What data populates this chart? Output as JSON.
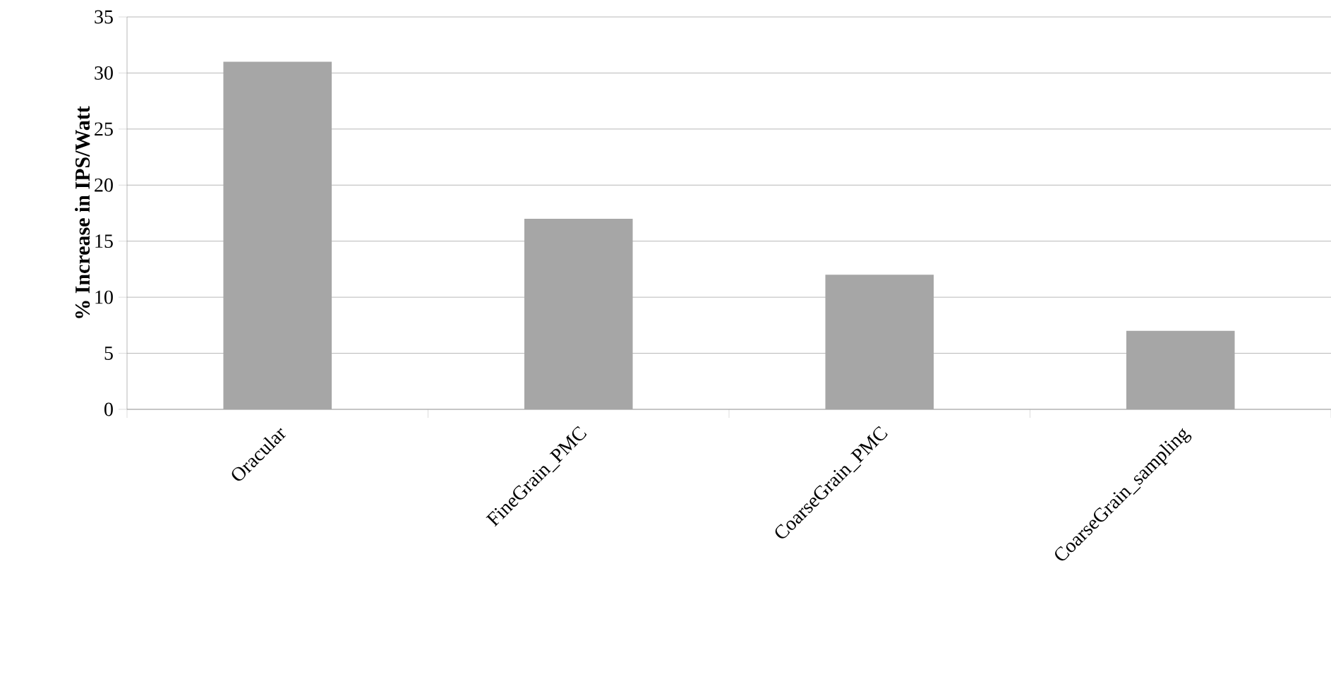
{
  "chart_data": {
    "type": "bar",
    "ylabel": "% Increase in IPS/Watt",
    "categories": [
      "Oracular",
      "FineGrain_PMC",
      "CoarseGrain_PMC",
      "CoarseGrain_sampling"
    ],
    "values": [
      31,
      17,
      12,
      7
    ],
    "color": "#a6a6a6",
    "ylim": [
      0,
      35
    ],
    "yticks": [
      0,
      5,
      10,
      15,
      20,
      25,
      30,
      35
    ],
    "grid": "y"
  }
}
